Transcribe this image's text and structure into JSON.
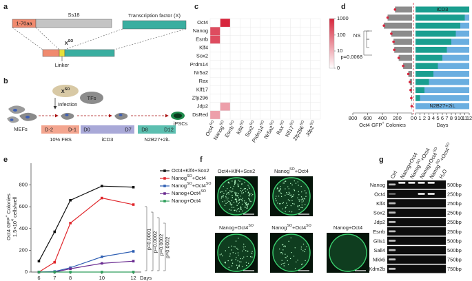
{
  "panel_labels": [
    "a",
    "b",
    "c",
    "d",
    "e",
    "f",
    "g"
  ],
  "panel_a": {
    "n_term": "1-70aa",
    "ss18": "Ss18",
    "tf": "Transcription factor (X)",
    "fusion": [
      "X",
      "SO"
    ],
    "linker": "Linker"
  },
  "panel_b": {
    "fusion": [
      "X",
      "SO"
    ],
    "tfs": "TFs",
    "infection": "Infection",
    "mefs": "MEFs",
    "days": [
      "D-2",
      "D-1",
      "D0",
      "D7",
      "D8",
      "D12"
    ],
    "stages": [
      "10% FBS",
      "iCD3",
      "N2B27+2iL"
    ],
    "ipscs": "iPSCs"
  },
  "chart_data": [
    {
      "type": "heatmap",
      "rows": [
        "Oct4",
        "Nanog",
        "Esrrb",
        "Klf4",
        "Sox2",
        "Prdm14",
        "Nr5a2",
        "Rax",
        "Klf17",
        "Zfp296",
        "Jdp2",
        "DsRed"
      ],
      "columns": [
        [
          "Oct4",
          "SO"
        ],
        [
          "Nanog",
          "SO"
        ],
        [
          "Esrrb",
          "SO"
        ],
        [
          "Klf4",
          "SO"
        ],
        [
          "Sox2",
          "SO"
        ],
        [
          "Prdm14",
          "SO"
        ],
        [
          "Nr5a2",
          "SO"
        ],
        [
          "Rax",
          "SO"
        ],
        [
          "Klf17",
          "SO"
        ],
        [
          "Zfp296",
          "SO"
        ],
        [
          "Jdp2",
          "SO"
        ]
      ],
      "values": [
        [
          0,
          1000,
          0,
          0,
          0,
          0,
          0,
          0,
          0,
          0,
          0
        ],
        [
          300,
          0,
          0,
          0,
          0,
          0,
          0,
          0,
          0,
          0,
          0
        ],
        [
          300,
          0,
          0,
          0,
          0,
          0,
          0,
          0,
          0,
          0,
          0
        ],
        [
          0,
          0,
          0,
          0,
          0,
          0,
          0,
          0,
          0,
          0,
          0
        ],
        [
          0,
          0,
          0,
          0,
          0,
          0,
          0,
          0,
          0,
          0,
          0
        ],
        [
          0,
          0,
          0,
          0,
          0,
          0,
          0,
          0,
          0,
          0,
          0
        ],
        [
          0,
          0,
          0,
          0,
          0,
          0,
          0,
          0,
          0,
          0,
          0
        ],
        [
          0,
          0,
          0,
          0,
          0,
          0,
          0,
          0,
          0,
          0,
          0
        ],
        [
          0,
          0,
          0,
          0,
          0,
          0,
          0,
          0,
          0,
          0,
          0
        ],
        [
          0,
          0,
          0,
          0,
          0,
          0,
          0,
          0,
          0,
          0,
          0
        ],
        [
          0,
          20,
          0,
          0,
          0,
          0,
          0,
          0,
          0,
          0,
          0
        ],
        [
          20,
          0,
          0,
          0,
          0,
          0,
          0,
          0,
          0,
          0,
          0
        ]
      ],
      "color": "#d7263d",
      "log_scale": true,
      "clim": [
        0,
        1000
      ],
      "cticks": [
        0,
        10,
        100,
        1000
      ]
    },
    {
      "type": "barh",
      "xlabel": [
        "Oct4 GFP",
        "+",
        " Colonies"
      ],
      "values": [
        230,
        330,
        380,
        280,
        250,
        240,
        180,
        120,
        50,
        30,
        20,
        10,
        5
      ],
      "color": "#8c8c8c",
      "dot_color": "#d7263d",
      "xlim": [
        0,
        800
      ],
      "x_reversed": true,
      "xticks": [
        800,
        600,
        400,
        200,
        0
      ],
      "annotations": [
        "NS",
        "p=0.0068"
      ]
    },
    {
      "type": "stacked_barh",
      "xlabel": "Days",
      "xlim": [
        0,
        12
      ],
      "xticks": [
        0,
        1,
        2,
        3,
        4,
        5,
        6,
        7,
        8,
        9,
        10,
        11,
        12
      ],
      "series": [
        {
          "name": "iCD3",
          "color": "#1a9e8f",
          "values": [
            12,
            11,
            10,
            9,
            8,
            7,
            6,
            5,
            4,
            3,
            2,
            1,
            0
          ]
        },
        {
          "name": "N2B27+2iL",
          "color": "#6aaee0",
          "values": [
            0,
            1,
            2,
            3,
            4,
            5,
            6,
            7,
            8,
            9,
            10,
            11,
            12
          ]
        }
      ]
    },
    {
      "type": "line",
      "x": [
        6,
        7,
        8,
        10,
        12
      ],
      "xlim": [
        5.5,
        12.5
      ],
      "xticks": [
        6,
        7,
        8,
        10,
        12
      ],
      "xlabel": "Days",
      "ylabel": [
        "Oct4 GFP",
        "+",
        " Colonies"
      ],
      "ylabel2": [
        "1.5×10",
        "4",
        " cells/well"
      ],
      "ylim": [
        0,
        1000
      ],
      "yticks": [
        0,
        200,
        400,
        600,
        800
      ],
      "series": [
        {
          "name": [
            "Oct4+Klf4+Sox2"
          ],
          "color": "#111111",
          "values": [
            100,
            370,
            660,
            790,
            780
          ]
        },
        {
          "name": [
            "Nanog",
            "SO",
            "+Oct4"
          ],
          "color": "#e0262b",
          "values": [
            0,
            90,
            450,
            680,
            620
          ]
        },
        {
          "name": [
            "Nanog",
            "SO",
            "+Oct4",
            "SO"
          ],
          "color": "#2f5fb3",
          "values": [
            0,
            5,
            40,
            140,
            190
          ]
        },
        {
          "name": [
            "Nanog+Oct4",
            "SO"
          ],
          "color": "#6a2c91",
          "values": [
            0,
            0,
            30,
            80,
            100
          ]
        },
        {
          "name": [
            "Nanog+Oct4"
          ],
          "color": "#2e9e5a",
          "values": [
            0,
            0,
            0,
            0,
            0
          ]
        }
      ],
      "annotations": [
        "p=0.0001",
        "p=0.0002",
        "p=0.0002",
        "p=0.0002"
      ]
    }
  ],
  "panel_f": {
    "plates": [
      [
        "Oct4+Klf4+Sox2"
      ],
      [
        "Nanog",
        "SO",
        "+Oct4"
      ],
      [
        "Nanog+Oct4",
        "SO"
      ],
      [
        "Nanog",
        "SO",
        "+Oct4",
        "SO"
      ],
      [
        "Nanog+Oct4"
      ]
    ]
  },
  "panel_g": {
    "lanes": [
      [
        "Ctrl"
      ],
      [
        "Nanog+Oct4"
      ],
      [
        "Nanog",
        "SO",
        "+Oct4"
      ],
      [
        "Nanog+Oct4",
        "SO"
      ],
      [
        "Nanog",
        "SO",
        "+Oct4",
        "SO"
      ],
      [
        "H₂O"
      ]
    ],
    "genes": [
      "Nanog",
      "Oct4",
      "Klf4",
      "Sox2",
      "Jdp2",
      "Esrrb",
      "Glis1",
      "Sall4",
      "Mkk6",
      "Kdm2b"
    ],
    "sizes": [
      "500bp",
      "250bp",
      "250bp",
      "250bp",
      "250bp",
      "250bp",
      "500bp",
      "500bp",
      "750bp",
      "750bp"
    ]
  }
}
